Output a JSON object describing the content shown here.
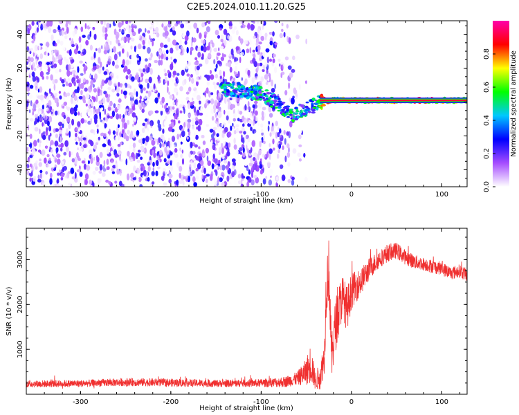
{
  "title": "C2E5.2024.010.11.20.G25",
  "chart_data": [
    {
      "type": "heatmap",
      "xlabel": "Height of straight line (km)",
      "ylabel": "Frequency (Hz)",
      "xlim": [
        -360,
        128
      ],
      "ylim": [
        -50,
        48
      ],
      "xticks": [
        -300,
        -200,
        -100,
        0,
        100
      ],
      "yticks": [
        -40,
        -20,
        0,
        20,
        40
      ],
      "colorbar": {
        "label": "Normalized spectral amplitude",
        "range": [
          0,
          1
        ],
        "ticks": [
          0.0,
          0.2,
          0.4,
          0.6,
          0.8
        ],
        "colormap": [
          "#ffffff",
          "#a64dff",
          "#0000ff",
          "#00c8ff",
          "#00ff00",
          "#ffff00",
          "#ff0000",
          "#ff00aa"
        ]
      },
      "ridge": {
        "x": [
          -145,
          -120,
          -100,
          -85,
          -75,
          -65,
          -55,
          -45,
          -35,
          -20,
          0,
          40,
          80,
          128
        ],
        "y": [
          8,
          7,
          5,
          0,
          -4,
          -8,
          -5,
          -3,
          0,
          1,
          1,
          1,
          1,
          1
        ]
      },
      "noise_region_x": [
        -360,
        -55
      ],
      "tone": {
        "x_start": -35,
        "x_end": 128,
        "y": 1,
        "amplitude_peak": 0.9
      }
    },
    {
      "type": "line",
      "xlabel": "Height of straight line (km)",
      "ylabel": "SNR (10 * v/v)",
      "xlim": [
        -360,
        128
      ],
      "ylim": [
        0,
        3700
      ],
      "xticks": [
        -300,
        -200,
        -100,
        0,
        100
      ],
      "yticks": [
        1000,
        2000,
        3000
      ],
      "series": [
        {
          "color": "#f03030",
          "profile_x": [
            -360,
            -300,
            -250,
            -200,
            -150,
            -100,
            -75,
            -60,
            -50,
            -45,
            -40,
            -35,
            -30,
            -28,
            -25,
            -22,
            -18,
            -15,
            -10,
            -5,
            0,
            10,
            20,
            30,
            40,
            50,
            60,
            70,
            80,
            90,
            100,
            110,
            120,
            128
          ],
          "profile_y": [
            230,
            240,
            270,
            260,
            240,
            250,
            270,
            350,
            500,
            700,
            300,
            400,
            800,
            2400,
            2800,
            800,
            1500,
            1800,
            2200,
            1900,
            2300,
            2500,
            2800,
            3000,
            3150,
            3200,
            3050,
            2950,
            2900,
            2850,
            2800,
            2700,
            2750,
            2650
          ],
          "noise_amplitude": [
            80,
            80,
            90,
            90,
            80,
            90,
            120,
            150,
            300,
            450,
            200,
            300,
            400,
            700,
            700,
            500,
            600,
            600,
            500,
            500,
            400,
            300,
            250,
            200,
            200,
            180,
            170,
            160,
            150,
            150,
            150,
            150,
            150,
            150
          ]
        }
      ]
    }
  ]
}
